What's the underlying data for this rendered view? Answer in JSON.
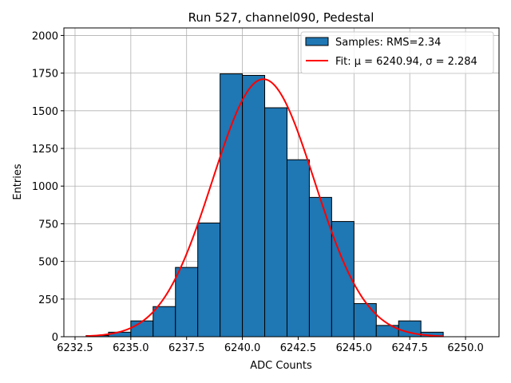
{
  "chart_data": {
    "type": "bar",
    "title": "Run 527, channel090, Pedestal",
    "xlabel": "ADC Counts",
    "ylabel": "Entries",
    "xlim": [
      6232.0,
      6251.5
    ],
    "ylim": [
      0,
      2050
    ],
    "grid": true,
    "legend_position": "top-right",
    "x_ticks": [
      6232.5,
      6235.0,
      6237.5,
      6240.0,
      6242.5,
      6245.0,
      6247.5,
      6250.0
    ],
    "x_tick_labels": [
      "6232.5",
      "6235.0",
      "6237.5",
      "6240.0",
      "6242.5",
      "6245.0",
      "6247.5",
      "6250.0"
    ],
    "y_ticks": [
      0,
      250,
      500,
      750,
      1000,
      1250,
      1500,
      1750,
      2000
    ],
    "y_tick_labels": [
      "0",
      "250",
      "500",
      "750",
      "1000",
      "1250",
      "1500",
      "1750",
      "2000"
    ],
    "bin_edges": [
      6233,
      6234,
      6235,
      6236,
      6237,
      6238,
      6239,
      6240,
      6241,
      6242,
      6243,
      6244,
      6245,
      6246,
      6247,
      6248,
      6249,
      6250,
      6251
    ],
    "series": [
      {
        "name": "Samples: RMS=2.34",
        "kind": "histogram",
        "color": "#1f77b4",
        "edgecolor": "#000000",
        "values": [
          8,
          30,
          105,
          200,
          460,
          755,
          1745,
          1735,
          1520,
          1175,
          925,
          765,
          220,
          75,
          105,
          30,
          0,
          0
        ]
      },
      {
        "name": "Fit: μ = 6240.94, σ = 2.284",
        "kind": "gaussian",
        "color": "#ff0000",
        "mu": 6240.94,
        "sigma": 2.284,
        "amplitude": 1710,
        "x_range": [
          6233,
          6249
        ]
      }
    ]
  }
}
